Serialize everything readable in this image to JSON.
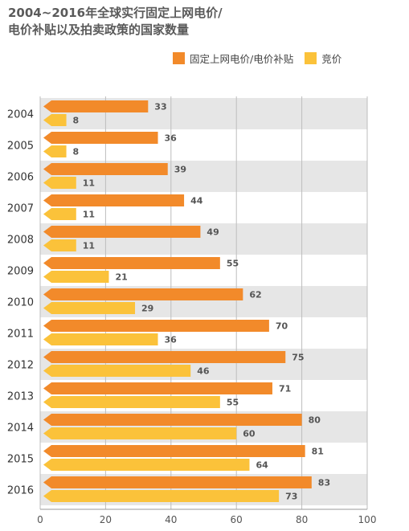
{
  "title": {
    "line1": "2004~2016年全球实行固定上网电价/",
    "line2": "电价补贴以及拍卖政策的国家数量"
  },
  "colors": {
    "fit": "#F28A2A",
    "auction": "#FBC23A",
    "band": "#E6E6E6",
    "grid": "#BDBDBD"
  },
  "chart_data": {
    "type": "bar",
    "orientation": "horizontal",
    "categories": [
      "2004",
      "2005",
      "2006",
      "2007",
      "2008",
      "2009",
      "2010",
      "2011",
      "2012",
      "2013",
      "2014",
      "2015",
      "2016"
    ],
    "series": [
      {
        "name": "固定上网电价/电价补贴",
        "values": [
          33,
          36,
          39,
          44,
          49,
          55,
          62,
          70,
          75,
          71,
          80,
          81,
          83
        ]
      },
      {
        "name": "竞价",
        "values": [
          8,
          8,
          11,
          11,
          11,
          21,
          29,
          36,
          46,
          55,
          60,
          64,
          73
        ]
      }
    ],
    "xlim": [
      0,
      100
    ],
    "xticks": [
      0,
      20,
      40,
      60,
      80,
      100
    ],
    "grid": true,
    "legend_position": "top-right"
  }
}
